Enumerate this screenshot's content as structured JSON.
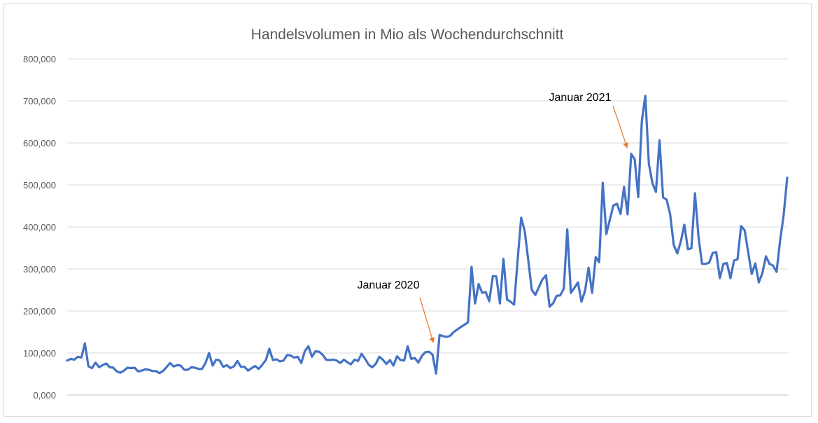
{
  "chart_data": {
    "type": "line",
    "title": "Handelsvolumen in Mio als Wochendurchschnitt",
    "xlabel": "",
    "ylabel": "",
    "ylim": [
      0,
      800
    ],
    "yticks": [
      0,
      100,
      200,
      300,
      400,
      500,
      600,
      700,
      800
    ],
    "ytick_labels": [
      "0,000",
      "100,000",
      "200,000",
      "300,000",
      "400,000",
      "500,000",
      "600,000",
      "700,000",
      "800,000"
    ],
    "grid": true,
    "legend": "none",
    "series": [
      {
        "color": "#4472c4",
        "values": [
          82,
          86,
          84,
          91,
          89,
          123,
          68,
          64,
          77,
          66,
          71,
          75,
          66,
          65,
          56,
          53,
          58,
          65,
          64,
          65,
          56,
          58,
          61,
          60,
          57,
          57,
          52,
          57,
          66,
          76,
          68,
          71,
          70,
          60,
          60,
          66,
          65,
          62,
          62,
          76,
          100,
          70,
          84,
          82,
          67,
          71,
          64,
          68,
          81,
          67,
          67,
          58,
          64,
          69,
          62,
          72,
          83,
          110,
          83,
          85,
          80,
          82,
          95,
          94,
          89,
          91,
          76,
          104,
          116,
          91,
          104,
          103,
          96,
          84,
          83,
          84,
          82,
          76,
          84,
          78,
          73,
          84,
          81,
          98,
          86,
          72,
          66,
          74,
          91,
          84,
          74,
          83,
          70,
          92,
          83,
          82,
          116,
          86,
          88,
          77,
          93,
          102,
          103,
          96,
          51,
          143,
          140,
          138,
          141,
          150,
          156,
          162,
          167,
          173,
          305,
          218,
          264,
          243,
          245,
          223,
          283,
          282,
          218,
          324,
          227,
          222,
          215,
          322,
          422,
          390,
          320,
          250,
          238,
          257,
          275,
          285,
          210,
          218,
          236,
          237,
          253,
          394,
          243,
          255,
          268,
          222,
          248,
          303,
          243,
          328,
          316,
          505,
          383,
          418,
          451,
          455,
          431,
          495,
          430,
          574,
          561,
          471,
          651,
          712,
          550,
          504,
          483,
          606,
          470,
          465,
          430,
          357,
          337,
          365,
          405,
          347,
          349,
          480,
          375,
          312,
          312,
          315,
          338,
          340,
          278,
          312,
          314,
          278,
          320,
          323,
          402,
          392,
          340,
          288,
          313,
          268,
          290,
          330,
          312,
          308,
          293,
          368,
          428,
          517
        ]
      }
    ],
    "annotations": [
      {
        "text": "Januar 2020",
        "x_index": 101,
        "y": 100
      },
      {
        "text": "Januar 2021",
        "x_index": 158,
        "y": 580
      }
    ]
  }
}
